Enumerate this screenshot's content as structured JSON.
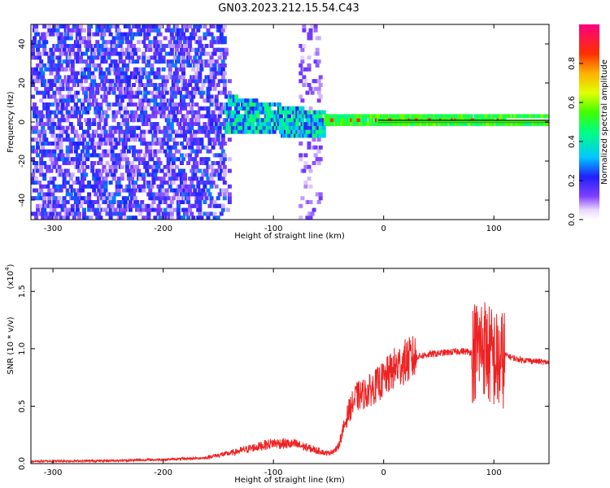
{
  "title": "GN03.2023.212.15.54.C43",
  "chart_data": [
    {
      "type": "heatmap",
      "xlabel": "Height of straight line (km)",
      "ylabel": "Frequency (Hz)",
      "xlim": [
        -320,
        150
      ],
      "ylim": [
        -50,
        50
      ],
      "xticks": [
        -300,
        -200,
        -100,
        0,
        100
      ],
      "yticks": [
        -40,
        -20,
        0,
        20,
        40
      ],
      "colorbar": {
        "label": "Normalized spectral amplitude",
        "range": [
          0.0,
          1.0
        ],
        "ticks": [
          "0.0",
          "0.2",
          "0.4",
          "0.6",
          "0.8"
        ],
        "colormap": "rainbow (white -> violet -> blue -> cyan -> green -> yellow -> orange -> red -> magenta)"
      },
      "regions": [
        {
          "x_range": [
            -320,
            -145
          ],
          "frequency_range": [
            -50,
            50
          ],
          "amplitude": "0.05-0.3 (noise, violet)"
        },
        {
          "x_range": [
            -170,
            -55
          ],
          "frequency_center": 2,
          "frequency_halfwidth": 10,
          "amplitude": "0.2-0.5 (blue/cyan/green)"
        },
        {
          "x_range": [
            -75,
            -60
          ],
          "frequency_range": [
            -50,
            50
          ],
          "amplitude": "0.05-0.15 (faint violet stripe)"
        },
        {
          "x_range": [
            -55,
            150
          ],
          "frequency_center": 0,
          "frequency_halfwidth": 2,
          "amplitude": "0.5-0.9 (green band with red peaks)"
        }
      ]
    },
    {
      "type": "line",
      "xlabel": "Height of straight line (km)",
      "ylabel": "SNR (10 * v/v)",
      "y_scale_label": "(x10",
      "y_scale_exponent": "4",
      "xlim": [
        -320,
        150
      ],
      "ylim": [
        0,
        17000
      ],
      "xticks": [
        -300,
        -200,
        -100,
        0,
        100
      ],
      "yticks": [
        "0.0",
        "0.5",
        "1.0",
        "1.5"
      ],
      "series": [
        {
          "color": "#ee2222",
          "x": [
            -320,
            -250,
            -200,
            -160,
            -140,
            -120,
            -100,
            -80,
            -60,
            -50,
            -42,
            -38,
            -32,
            -25,
            -15,
            0,
            10,
            20,
            30,
            40,
            50,
            60,
            70,
            80,
            85,
            90,
            95,
            100,
            105,
            110,
            120,
            130,
            140,
            150
          ],
          "y": [
            200,
            250,
            350,
            500,
            800,
            1200,
            1600,
            1500,
            1000,
            900,
            1300,
            2500,
            4500,
            5800,
            6200,
            7300,
            8300,
            8900,
            9300,
            9500,
            9600,
            9700,
            9800,
            9700,
            10000,
            10500,
            9500,
            9200,
            8500,
            9500,
            9100,
            9000,
            8900,
            8800
          ]
        }
      ]
    }
  ]
}
